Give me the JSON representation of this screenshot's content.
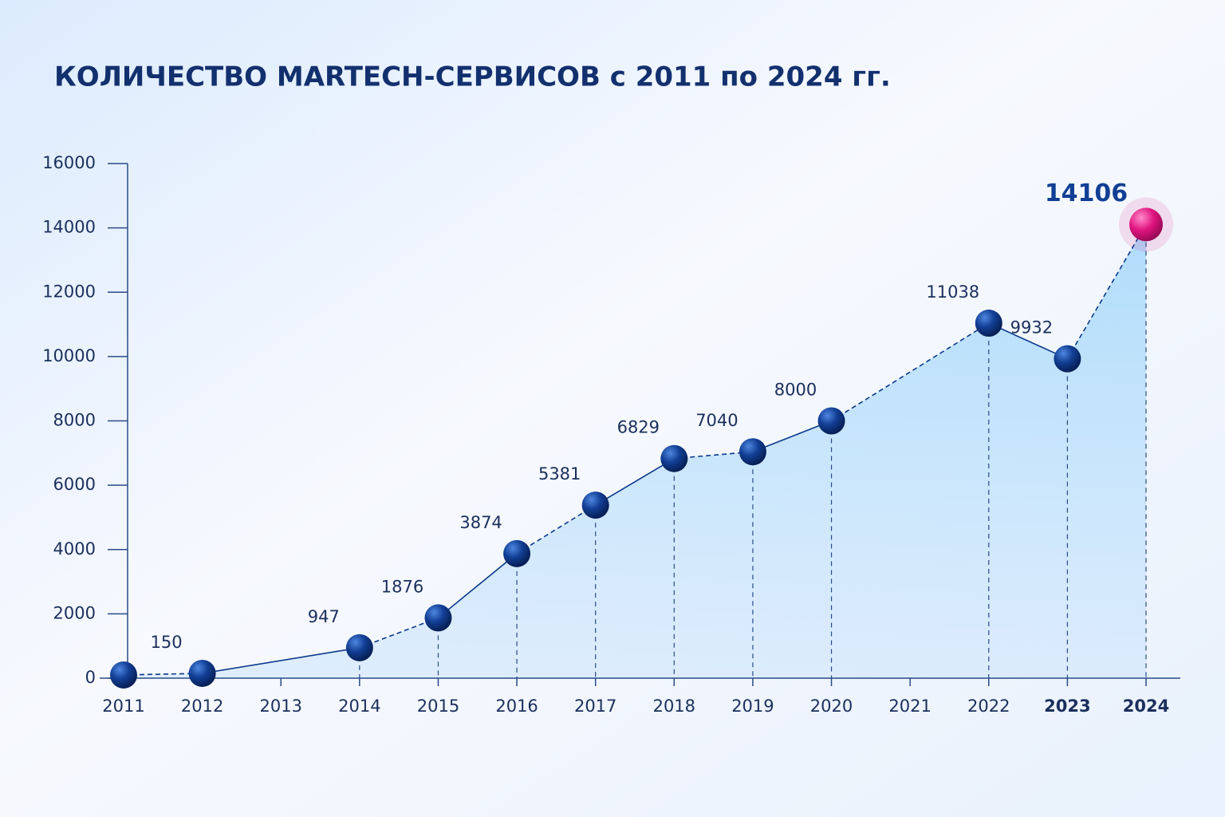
{
  "chart_data": {
    "type": "line",
    "title": "КОЛИЧЕСТВО MARTECH-СЕРВИСОВ с 2011 по 2024 гг.",
    "categories": [
      "2011",
      "2012",
      "2013",
      "2014",
      "2015",
      "2016",
      "2017",
      "2018",
      "2019",
      "2020",
      "2021",
      "2022",
      "2023",
      "2024"
    ],
    "values": [
      100,
      150,
      null,
      947,
      1876,
      3874,
      5381,
      6829,
      7040,
      8000,
      null,
      11038,
      9932,
      14106
    ],
    "value_labels": [
      null,
      "150",
      null,
      "947",
      "1876",
      "3874",
      "5381",
      "6829",
      "7040",
      "8000",
      null,
      "11038",
      "9932",
      "14106"
    ],
    "color": "#0d3a8a",
    "highlight_color": "#e0147f",
    "ylim": [
      0,
      16000
    ],
    "yticks": [
      0,
      2000,
      4000,
      6000,
      8000,
      10000,
      12000,
      14000,
      16000
    ]
  }
}
